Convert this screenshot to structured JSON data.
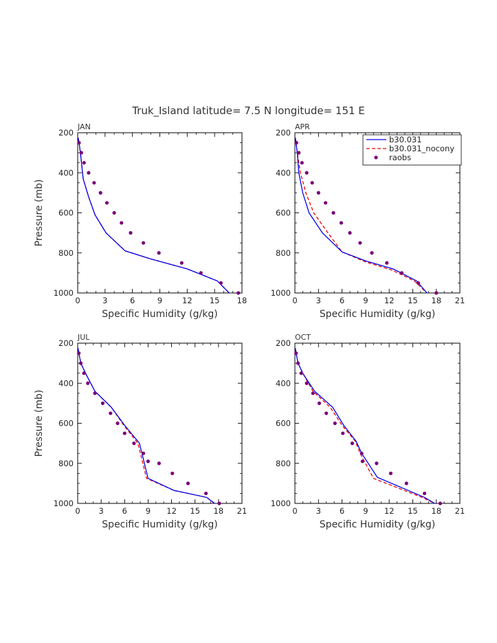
{
  "title": "Truk_Island  latitude= 7.5 N longitude= 151 E",
  "colors": {
    "model": "#0000ee",
    "nocony": "#ee0000",
    "raobs": "#7a007a"
  },
  "legend": [
    "b30.031",
    "b30.031_nocony",
    "raobs"
  ],
  "chart_data": [
    {
      "type": "line",
      "panel": "JAN",
      "xlabel": "Specific Humidity (g/kg)",
      "ylabel": "Pressure (mb)",
      "xlim": [
        0,
        18
      ],
      "ylim": [
        1000,
        200
      ],
      "xticks": [
        0,
        3,
        6,
        9,
        12,
        15,
        18
      ],
      "yticks": [
        200,
        400,
        600,
        800,
        1000
      ],
      "series": [
        {
          "name": "b30.031",
          "style": "solid",
          "x": [
            0.05,
            0.15,
            0.3,
            0.6,
            1.2,
            1.9,
            3.1,
            5.2,
            8.0,
            12.0,
            15.3,
            16.6
          ],
          "y": [
            225,
            250,
            300,
            430,
            520,
            610,
            700,
            790,
            830,
            880,
            940,
            1000
          ]
        },
        {
          "name": "b30.031_nocony",
          "style": "dashed",
          "x": [
            0.05,
            0.15,
            0.3,
            0.6,
            1.2,
            1.9,
            3.1,
            5.2,
            8.0,
            12.0,
            15.3,
            16.6
          ],
          "y": [
            225,
            250,
            300,
            430,
            520,
            610,
            700,
            790,
            830,
            880,
            940,
            1000
          ]
        },
        {
          "name": "raobs",
          "style": "dots",
          "x": [
            0.15,
            0.4,
            0.7,
            1.2,
            1.8,
            2.5,
            3.2,
            4.0,
            4.8,
            5.8,
            7.2,
            8.9,
            11.4,
            13.5,
            15.7,
            17.6
          ],
          "y": [
            250,
            300,
            350,
            400,
            450,
            500,
            550,
            600,
            650,
            700,
            750,
            800,
            850,
            900,
            950,
            1000
          ]
        }
      ]
    },
    {
      "type": "line",
      "panel": "APR",
      "xlabel": "Specific Humidity (g/kg)",
      "ylabel": "",
      "xlim": [
        0,
        21
      ],
      "ylim": [
        1000,
        200
      ],
      "xticks": [
        0,
        3,
        6,
        9,
        12,
        15,
        18,
        21
      ],
      "yticks": [
        200,
        400,
        600,
        800,
        1000
      ],
      "series": [
        {
          "name": "b30.031",
          "style": "solid",
          "x": [
            0.05,
            0.15,
            0.3,
            0.5,
            1.0,
            1.8,
            3.5,
            6.0,
            9.0,
            12.5,
            15.5,
            16.8
          ],
          "y": [
            225,
            250,
            300,
            400,
            500,
            600,
            700,
            795,
            840,
            880,
            940,
            1000
          ]
        },
        {
          "name": "b30.031_nocony",
          "style": "dashed",
          "x": [
            0.05,
            0.15,
            0.3,
            0.7,
            1.4,
            2.4,
            4.2,
            6.0,
            9.0,
            12.3,
            15.2,
            16.8
          ],
          "y": [
            225,
            250,
            300,
            400,
            500,
            600,
            700,
            795,
            845,
            885,
            940,
            1000
          ]
        },
        {
          "name": "raobs",
          "style": "dots",
          "x": [
            0.2,
            0.5,
            0.9,
            1.5,
            2.2,
            3.0,
            3.9,
            4.9,
            5.9,
            7.0,
            8.3,
            9.8,
            11.7,
            13.6,
            15.7,
            18.0
          ],
          "y": [
            250,
            300,
            350,
            400,
            450,
            500,
            550,
            600,
            650,
            700,
            750,
            800,
            850,
            900,
            950,
            1000
          ]
        }
      ]
    },
    {
      "type": "line",
      "panel": "JUL",
      "xlabel": "Specific Humidity (g/kg)",
      "ylabel": "Pressure (mb)",
      "xlim": [
        0,
        21
      ],
      "ylim": [
        1000,
        200
      ],
      "xticks": [
        0,
        3,
        6,
        9,
        12,
        15,
        18,
        21
      ],
      "yticks": [
        200,
        400,
        600,
        800,
        1000
      ],
      "series": [
        {
          "name": "b30.031",
          "style": "solid",
          "x": [
            0.05,
            0.15,
            0.4,
            1.0,
            2.2,
            4.3,
            6.0,
            7.9,
            9.0,
            12.3,
            16.5,
            17.5
          ],
          "y": [
            225,
            250,
            300,
            350,
            440,
            520,
            610,
            700,
            875,
            935,
            970,
            1000
          ]
        },
        {
          "name": "b30.031_nocony",
          "style": "dashed",
          "x": [
            0.05,
            0.15,
            0.4,
            1.0,
            2.2,
            4.3,
            5.9,
            7.7,
            8.8,
            12.3,
            16.5,
            17.5
          ],
          "y": [
            225,
            250,
            300,
            350,
            440,
            520,
            610,
            700,
            875,
            935,
            970,
            1000
          ]
        },
        {
          "name": "raobs",
          "style": "dots",
          "x": [
            0.15,
            0.4,
            0.8,
            1.3,
            2.2,
            3.2,
            4.2,
            5.1,
            6.0,
            7.2,
            8.4,
            9.0,
            10.4,
            12.1,
            14.1,
            16.4,
            18.1
          ],
          "y": [
            250,
            300,
            350,
            400,
            450,
            500,
            550,
            600,
            650,
            700,
            750,
            790,
            800,
            850,
            900,
            950,
            1000
          ]
        }
      ]
    },
    {
      "type": "line",
      "panel": "OCT",
      "xlabel": "Specific Humidity (g/kg)",
      "ylabel": "",
      "xlim": [
        0,
        21
      ],
      "ylim": [
        1000,
        200
      ],
      "xticks": [
        0,
        3,
        6,
        9,
        12,
        15,
        18,
        21
      ],
      "yticks": [
        200,
        400,
        600,
        800,
        1000
      ],
      "series": [
        {
          "name": "b30.031",
          "style": "solid",
          "x": [
            0.05,
            0.15,
            0.4,
            1.0,
            2.5,
            4.8,
            6.2,
            7.8,
            8.5,
            10.5,
            16.5,
            17.8
          ],
          "y": [
            225,
            250,
            300,
            350,
            440,
            520,
            610,
            690,
            750,
            870,
            970,
            1000
          ]
        },
        {
          "name": "b30.031_nocony",
          "style": "dashed",
          "x": [
            0.05,
            0.15,
            0.4,
            1.0,
            2.3,
            4.5,
            6.0,
            7.7,
            8.3,
            10.0,
            16.2,
            17.8
          ],
          "y": [
            225,
            250,
            300,
            350,
            440,
            520,
            610,
            690,
            750,
            875,
            970,
            1000
          ]
        },
        {
          "name": "raobs",
          "style": "dots",
          "x": [
            0.15,
            0.4,
            0.8,
            1.5,
            2.3,
            3.1,
            4.0,
            5.1,
            6.1,
            7.3,
            8.5,
            8.6,
            10.4,
            12.2,
            14.2,
            16.5,
            18.5
          ],
          "y": [
            250,
            300,
            350,
            400,
            450,
            500,
            550,
            600,
            650,
            700,
            750,
            790,
            800,
            850,
            900,
            950,
            1000
          ]
        }
      ]
    }
  ]
}
